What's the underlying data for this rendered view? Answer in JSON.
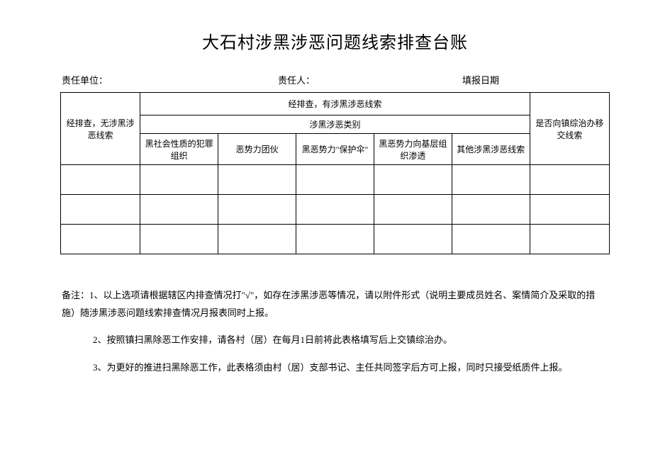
{
  "title": "大石村涉黑涉恶问题线索排查台账",
  "meta": {
    "unit_label": "责任单位：",
    "person_label": "责任人：",
    "date_label": "填报日期"
  },
  "table": {
    "left_header": "经排查，无涉黑涉恶线索",
    "group_header": "经排查，有涉黑涉恶线索",
    "sub_group_header": "涉黑涉恶类别",
    "right_header": "是否向镇综治办移交线索",
    "columns": [
      "黑社会性质的犯罪组织",
      "恶势力团伙",
      "黑恶势力\"保护伞\"",
      "黑恶势力向基层组织渗透",
      "其他涉黑涉恶线索"
    ],
    "data_rows": 3
  },
  "notes": {
    "prefix": "备注：",
    "item1": "1、以上选项请根据辖区内排查情况打\"√\"，如存在涉黑涉恶等情况，请以附件形式（说明主要成员姓名、案情简介及采取的措施）随涉黑涉恶问题线索排查情况月报表同时上报。",
    "item2": "2、按照镇扫黑除恶工作安排，请各村（居）在每月1日前将此表格填写后上交镇综治办。",
    "item3": "3、为更好的推进扫黑除恶工作，此表格须由村（居）支部书记、主任共同签字后方可上报，同时只接受纸质件上报。"
  },
  "colors": {
    "text": "#000000",
    "background": "#ffffff",
    "border": "#000000"
  }
}
